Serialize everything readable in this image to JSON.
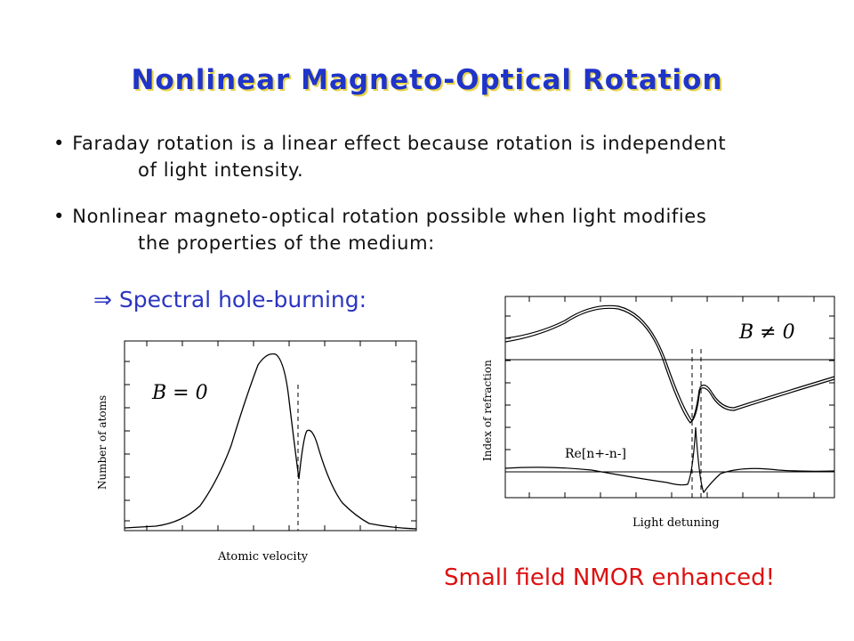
{
  "title": "Nonlinear Magneto-Optical Rotation",
  "bullets": [
    {
      "marker": "•",
      "line1": "Faraday rotation is a linear effect because rotation is independent",
      "line2": "of light intensity."
    },
    {
      "marker": "•",
      "line1": "Nonlinear magneto-optical rotation possible when light modifies",
      "line2": "the properties of the medium:"
    }
  ],
  "spectral": {
    "arrow": "⇒",
    "label": "Spectral hole-burning:"
  },
  "left_plot": {
    "field_label": "B = 0",
    "ylabel": "Number of atoms",
    "xlabel": "Atomic velocity"
  },
  "right_plot": {
    "field_label": "B ≠ 0",
    "ylabel": "Index of refraction",
    "xlabel": "Light detuning",
    "curve_label": "Re[n+-n-]"
  },
  "conclusion": "Small field NMOR enhanced!",
  "colors": {
    "title": "#1f34c8",
    "title_shadow": "#e8d44a",
    "spectral": "#2b35c0",
    "conclusion": "#dd1010"
  }
}
